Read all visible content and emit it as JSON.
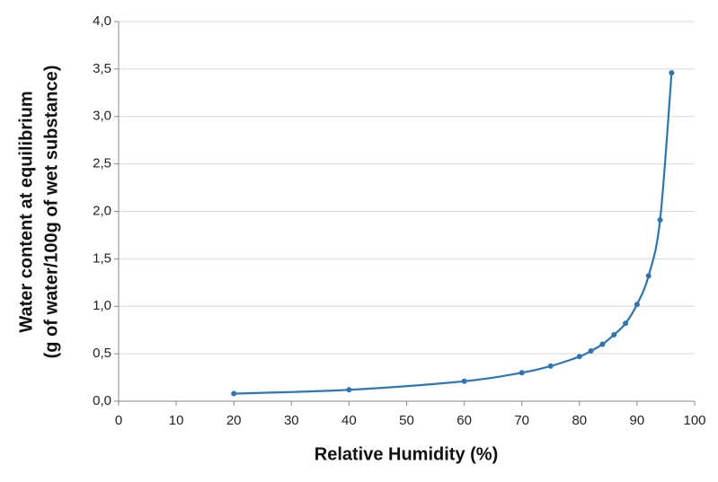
{
  "chart_data": {
    "type": "scatter",
    "xlabel": "Relative Humidity (%)",
    "ylabel": [
      "Water content at equilibrium",
      "(g of water/100g of wet substance)"
    ],
    "x": [
      20,
      40,
      60,
      70,
      75,
      80,
      82,
      84,
      86,
      88,
      90,
      92,
      94,
      96
    ],
    "values": [
      0.08,
      0.12,
      0.21,
      0.3,
      0.37,
      0.47,
      0.53,
      0.6,
      0.7,
      0.82,
      1.02,
      1.32,
      1.91,
      3.46
    ],
    "color": "#2e75b6",
    "xlim": [
      0,
      100
    ],
    "xticks": [
      0,
      10,
      20,
      30,
      40,
      50,
      60,
      70,
      80,
      90,
      100
    ],
    "ylim": [
      0,
      4
    ],
    "yticks": [
      {
        "value": 0,
        "label": "0,0"
      },
      {
        "value": 0.5,
        "label": "0,5"
      },
      {
        "value": 1,
        "label": "1,0"
      },
      {
        "value": 1.5,
        "label": "1,5"
      },
      {
        "value": 2,
        "label": "2,0"
      },
      {
        "value": 2.5,
        "label": "2,5"
      },
      {
        "value": 3,
        "label": "3,0"
      },
      {
        "value": 3.5,
        "label": "3,5"
      },
      {
        "value": 4,
        "label": "4,0"
      }
    ],
    "grid": true,
    "smooth": true
  }
}
